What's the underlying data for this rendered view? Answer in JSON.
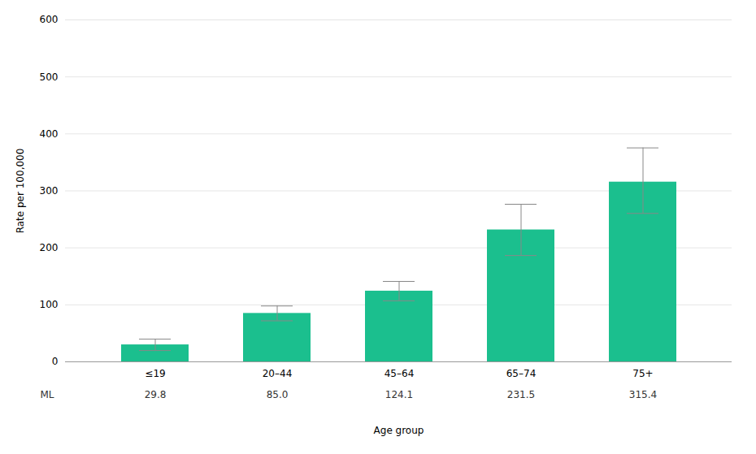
{
  "chart_data": {
    "type": "bar",
    "categories": [
      "≤19",
      "20–44",
      "45–64",
      "65–74",
      "75+"
    ],
    "values": [
      29.8,
      85.0,
      124.1,
      231.5,
      315.4
    ],
    "value_labels": [
      "29.8",
      "85.0",
      "124.1",
      "231.5",
      "315.4"
    ],
    "data_labels": true,
    "table_label": "ML",
    "error_low": [
      10.0,
      13.0,
      17.0,
      45.0,
      55.0
    ],
    "error_high": [
      10.0,
      13.0,
      17.0,
      45.0,
      60.0
    ],
    "color": "#1bbf8e",
    "ylabel": "Rate per 100,000",
    "xlabel": "Age group",
    "ylim": [
      0,
      600
    ],
    "yticks": [
      0,
      100,
      200,
      300,
      400,
      500,
      600
    ],
    "grid": true
  }
}
